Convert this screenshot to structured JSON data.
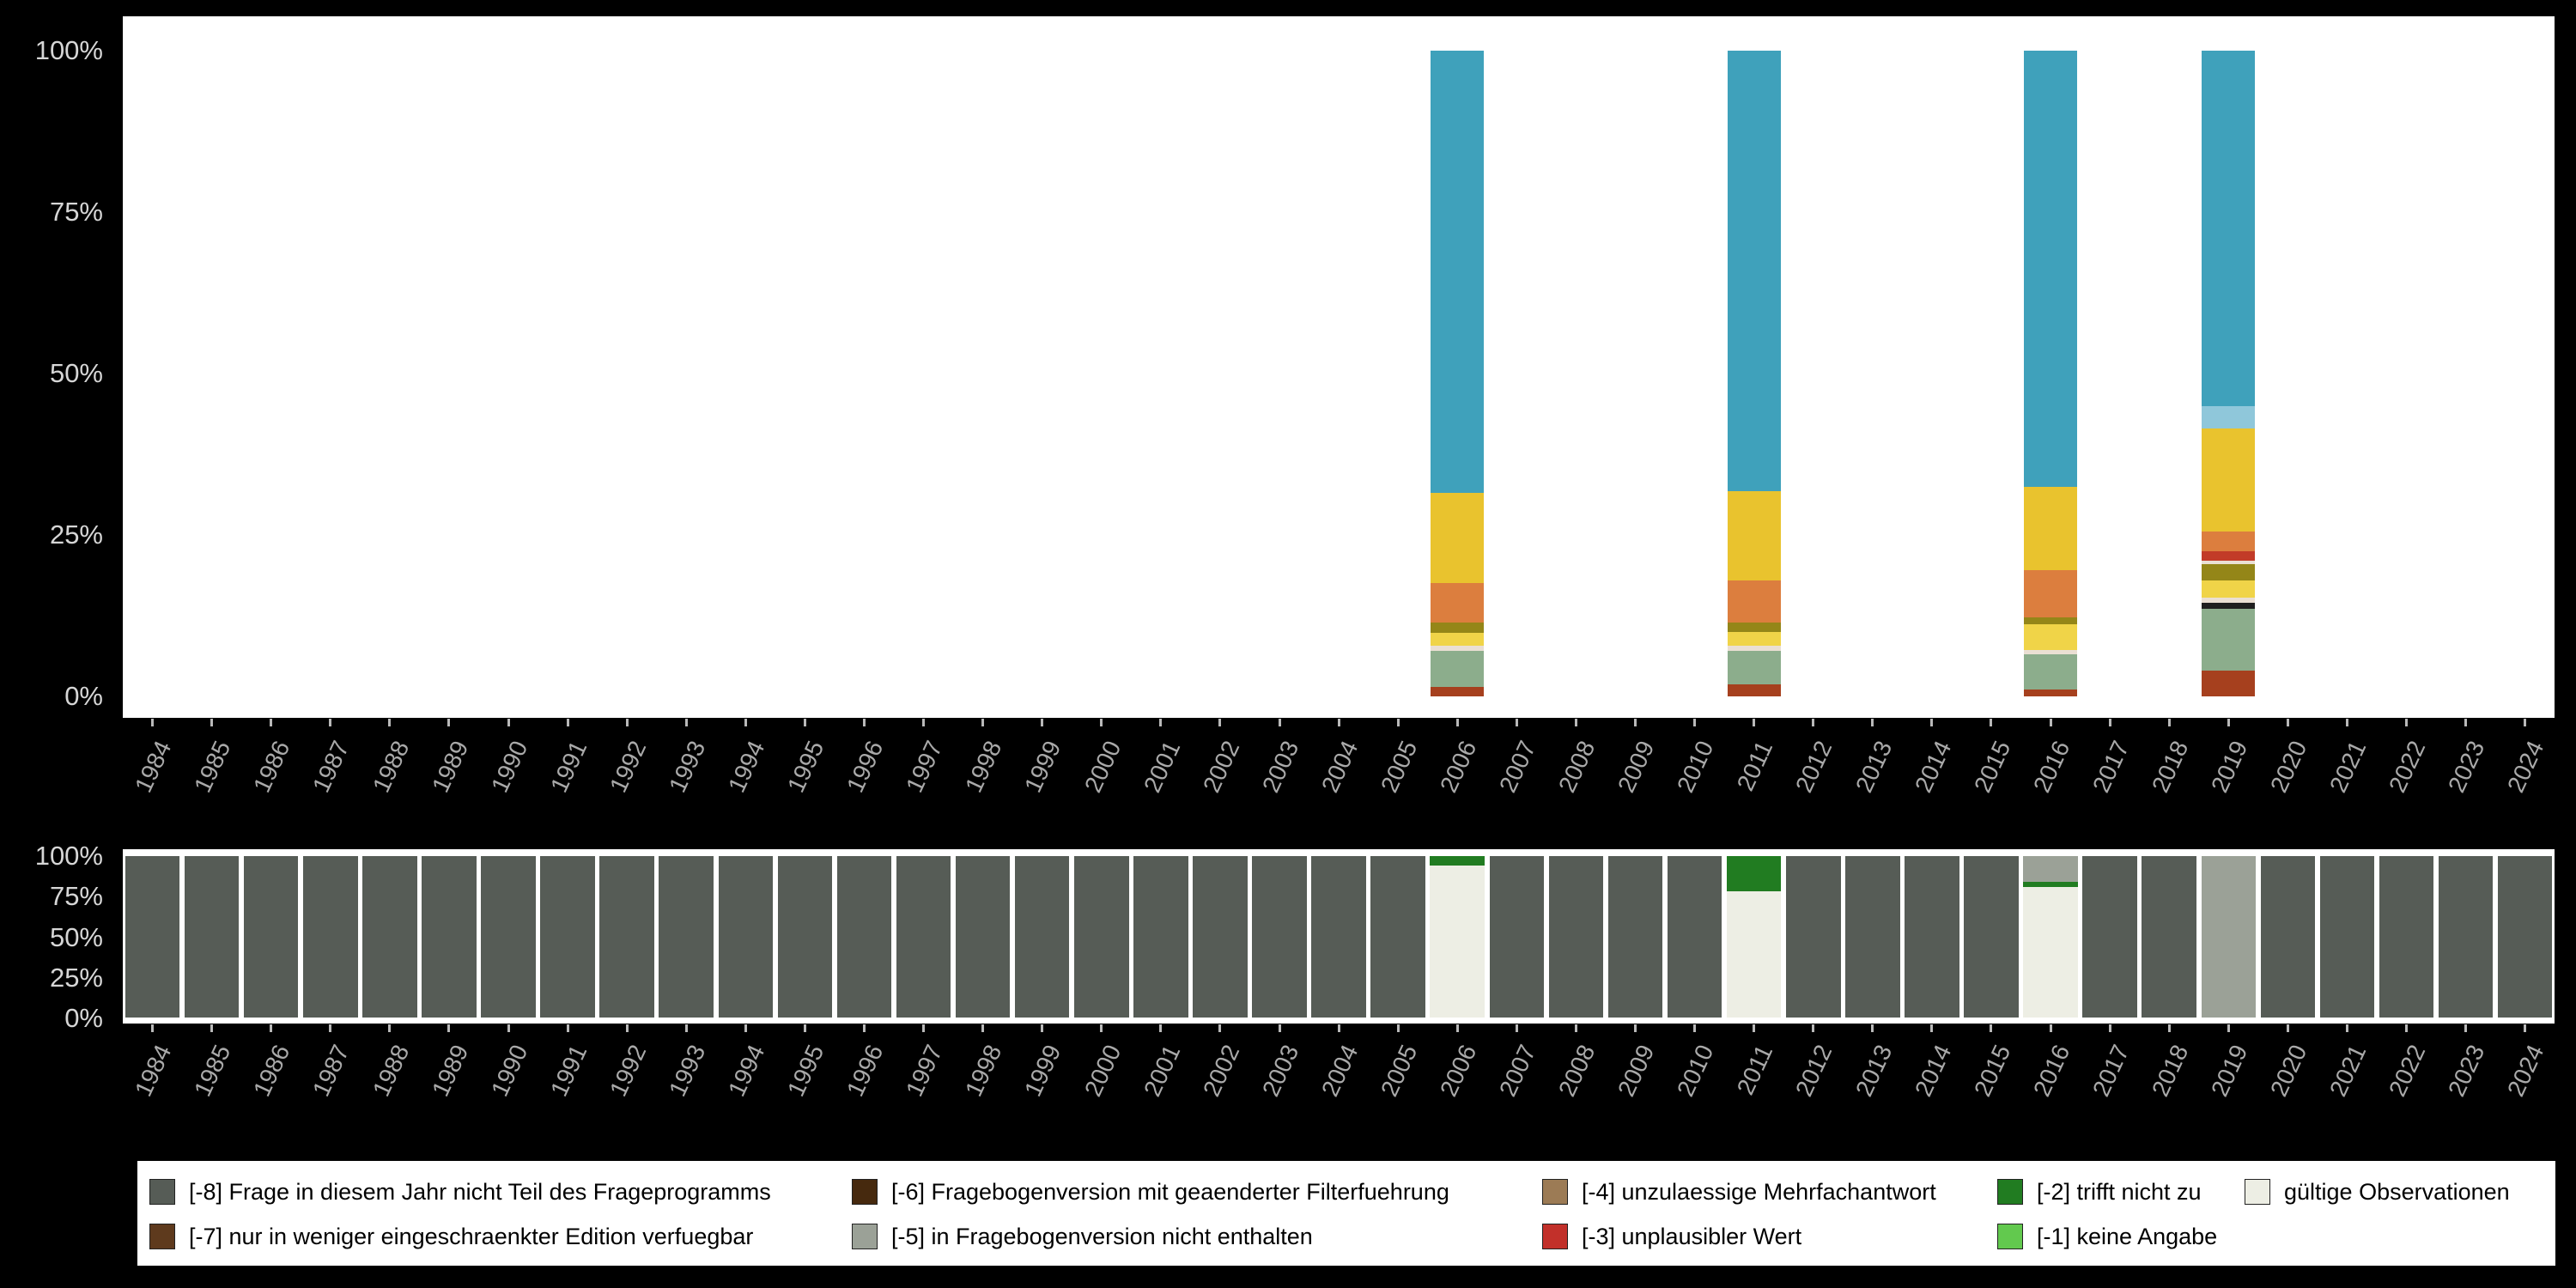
{
  "background": "#000000",
  "years": [
    "1984",
    "1985",
    "1986",
    "1987",
    "1988",
    "1989",
    "1990",
    "1991",
    "1992",
    "1993",
    "1994",
    "1995",
    "1996",
    "1997",
    "1998",
    "1999",
    "2000",
    "2001",
    "2002",
    "2003",
    "2004",
    "2005",
    "2006",
    "2007",
    "2008",
    "2009",
    "2010",
    "2011",
    "2012",
    "2013",
    "2014",
    "2015",
    "2016",
    "2017",
    "2018",
    "2019",
    "2020",
    "2021",
    "2022",
    "2023",
    "2024"
  ],
  "axis": {
    "ytick_labels": [
      "100%",
      "75%",
      "50%",
      "25%",
      "0%"
    ],
    "ylabel_color": "#d6d6d6",
    "xlabel_color": "#a9a9a9"
  },
  "palette": {
    "missing": {
      "-8": "#565C56",
      "-7": "#5E3A1D",
      "-6": "#46290E",
      "-5": "#9BA197",
      "-4": "#9C7B55",
      "-3": "#C2302A",
      "-2": "#217C21",
      "-1": "#62C94E",
      "valid": "#EDEEE4"
    },
    "answers": {
      "teal": "#3FA1BB",
      "lightblue": "#8FC7DA",
      "gold": "#E9C32E",
      "yellow": "#F0D448",
      "orange": "#DC7E3E",
      "olive": "#948618",
      "sage": "#8CAD8C",
      "brick": "#A6401E",
      "darkred": "#C23B28",
      "pale": "#EADFD3",
      "black": "#1F1F1F"
    }
  },
  "chart_data": [
    {
      "type": "bar",
      "panel": "top",
      "stacked": true,
      "ylim": [
        0,
        100
      ],
      "ytick_labels": [
        "100%",
        "75%",
        "50%",
        "25%",
        "0%"
      ],
      "grid": false,
      "bars": {
        "2006": [
          [
            "brick",
            1.5
          ],
          [
            "sage",
            5.5
          ],
          [
            "pale",
            0.8
          ],
          [
            "yellow",
            2.0
          ],
          [
            "olive",
            1.7
          ],
          [
            "orange",
            6.0
          ],
          [
            "gold",
            14.0
          ],
          [
            "teal",
            68.5
          ]
        ],
        "2011": [
          [
            "brick",
            1.8
          ],
          [
            "sage",
            5.2
          ],
          [
            "pale",
            0.8
          ],
          [
            "yellow",
            2.2
          ],
          [
            "olive",
            1.5
          ],
          [
            "orange",
            6.5
          ],
          [
            "gold",
            13.8
          ],
          [
            "teal",
            68.2
          ]
        ],
        "2016": [
          [
            "brick",
            1.0
          ],
          [
            "sage",
            5.5
          ],
          [
            "pale",
            0.7
          ],
          [
            "yellow",
            4.0
          ],
          [
            "olive",
            1.0
          ],
          [
            "orange",
            7.3
          ],
          [
            "gold",
            13.0
          ],
          [
            "teal",
            67.5
          ]
        ],
        "2019": [
          [
            "brick",
            4.0
          ],
          [
            "sage",
            9.5
          ],
          [
            "black",
            1.0
          ],
          [
            "pale",
            0.8
          ],
          [
            "yellow",
            2.7
          ],
          [
            "olive",
            2.5
          ],
          [
            "pale",
            0.5
          ],
          [
            "darkred",
            1.5
          ],
          [
            "orange",
            3.0
          ],
          [
            "gold",
            16.0
          ],
          [
            "lightblue",
            3.5
          ],
          [
            "teal",
            55.0
          ]
        ]
      }
    },
    {
      "type": "bar",
      "panel": "bottom",
      "stacked": true,
      "ylim": [
        0,
        100
      ],
      "ytick_labels": [
        "100%",
        "75%",
        "50%",
        "25%",
        "0%"
      ],
      "grid": false,
      "default_bar": [
        [
          "-8",
          100
        ]
      ],
      "bars": {
        "2006": [
          [
            "valid",
            94
          ],
          [
            "-2",
            6
          ]
        ],
        "2011": [
          [
            "valid",
            78
          ],
          [
            "-2",
            22
          ]
        ],
        "2016": [
          [
            "valid",
            81
          ],
          [
            "-2",
            3
          ],
          [
            "-5",
            16
          ]
        ],
        "2019": [
          [
            "-5",
            100
          ]
        ]
      }
    }
  ],
  "legend": {
    "background": "#ffffff",
    "items": [
      {
        "color_key": "-8",
        "label": "[-8] Frage in diesem Jahr nicht Teil des Frageprogramms"
      },
      {
        "color_key": "-7",
        "label": "[-7] nur in weniger eingeschraenkter Edition verfuegbar"
      },
      {
        "color_key": "-6",
        "label": "[-6] Fragebogenversion mit geaenderter Filterfuehrung"
      },
      {
        "color_key": "-5",
        "label": "[-5] in Fragebogenversion nicht enthalten"
      },
      {
        "color_key": "-4",
        "label": "[-4] unzulaessige Mehrfachantwort"
      },
      {
        "color_key": "-3",
        "label": "[-3] unplausibler Wert"
      },
      {
        "color_key": "-2",
        "label": "[-2] trifft nicht zu"
      },
      {
        "color_key": "-1",
        "label": "[-1] keine Angabe"
      },
      {
        "color_key": "valid",
        "label": "gültige Observationen"
      }
    ],
    "columns": [
      [
        0,
        1
      ],
      [
        2,
        3
      ],
      [
        4,
        5
      ],
      [
        6,
        7
      ],
      [
        8
      ]
    ]
  }
}
